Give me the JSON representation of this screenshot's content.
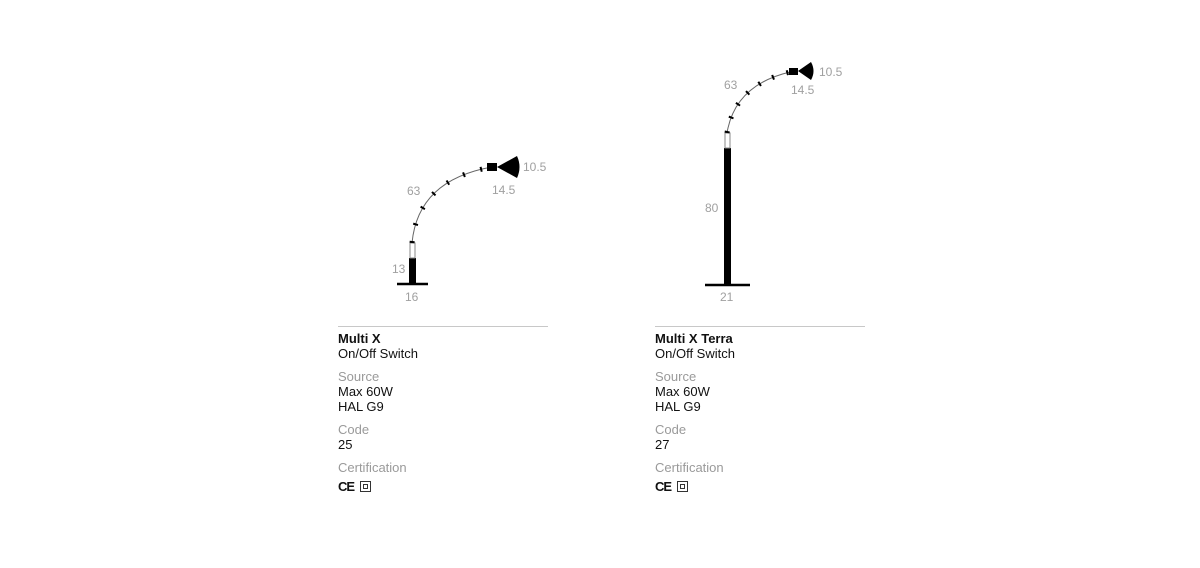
{
  "products": [
    {
      "name": "Multi X",
      "switch": "On/Off Switch",
      "source_label": "Source",
      "source_lines": [
        "Max 60W",
        "HAL G9"
      ],
      "code_label": "Code",
      "code": "25",
      "certification_label": "Certification",
      "certifications": [
        "ce-mark-icon",
        "class-ii-double-insulation-icon"
      ],
      "dimensions": {
        "shade_diameter": "10.5",
        "shade_depth": "14.5",
        "arm": "63",
        "height": "13",
        "base": "16"
      }
    },
    {
      "name": "Multi X Terra",
      "switch": "On/Off Switch",
      "source_label": "Source",
      "source_lines": [
        "Max 60W",
        "HAL G9"
      ],
      "code_label": "Code",
      "code": "27",
      "certification_label": "Certification",
      "certifications": [
        "ce-mark-icon",
        "class-ii-double-insulation-icon"
      ],
      "dimensions": {
        "shade_diameter": "10.5",
        "shade_depth": "14.5",
        "arm": "63",
        "height": "80",
        "base": "21"
      }
    }
  ]
}
